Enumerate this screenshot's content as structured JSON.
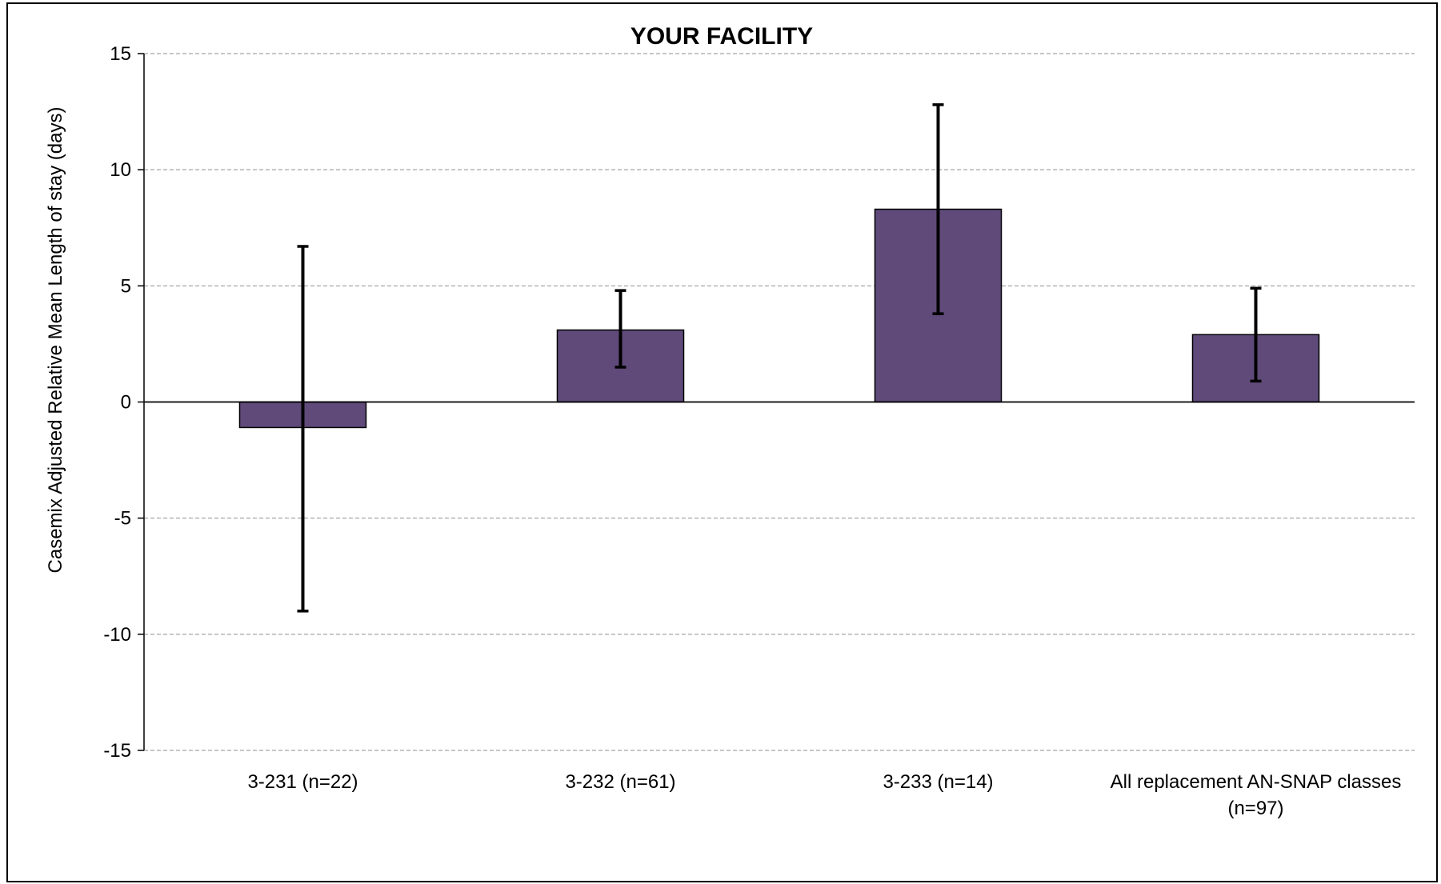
{
  "chart_data": {
    "type": "bar",
    "title": "YOUR FACILITY",
    "xlabel": "",
    "ylabel": "Casemix Adjusted Relative Mean Length of stay (days)",
    "ylim": [
      -15,
      15
    ],
    "yticks": [
      15,
      10,
      5,
      0,
      -5,
      -10,
      -15
    ],
    "grid": true,
    "legend": "none",
    "categories": [
      "3-231 (n=22)",
      "3-232 (n=61)",
      "3-233 (n=14)",
      "All replacement AN-SNAP classes (n=97)"
    ],
    "category_lines": [
      [
        "3-231 (n=22)"
      ],
      [
        "3-232 (n=61)"
      ],
      [
        "3-233 (n=14)"
      ],
      [
        "All replacement AN-SNAP classes",
        "(n=97)"
      ]
    ],
    "values": [
      -1.1,
      3.1,
      8.3,
      2.9
    ],
    "error_low": [
      -9.0,
      1.5,
      3.8,
      0.9
    ],
    "error_high": [
      6.7,
      4.8,
      12.8,
      4.9
    ],
    "colors": {
      "bar": "#5f4a7a",
      "bar_stroke": "#000000",
      "grid": "#b3b3b3",
      "axis": "#000000",
      "error_bar": "#000000"
    }
  }
}
